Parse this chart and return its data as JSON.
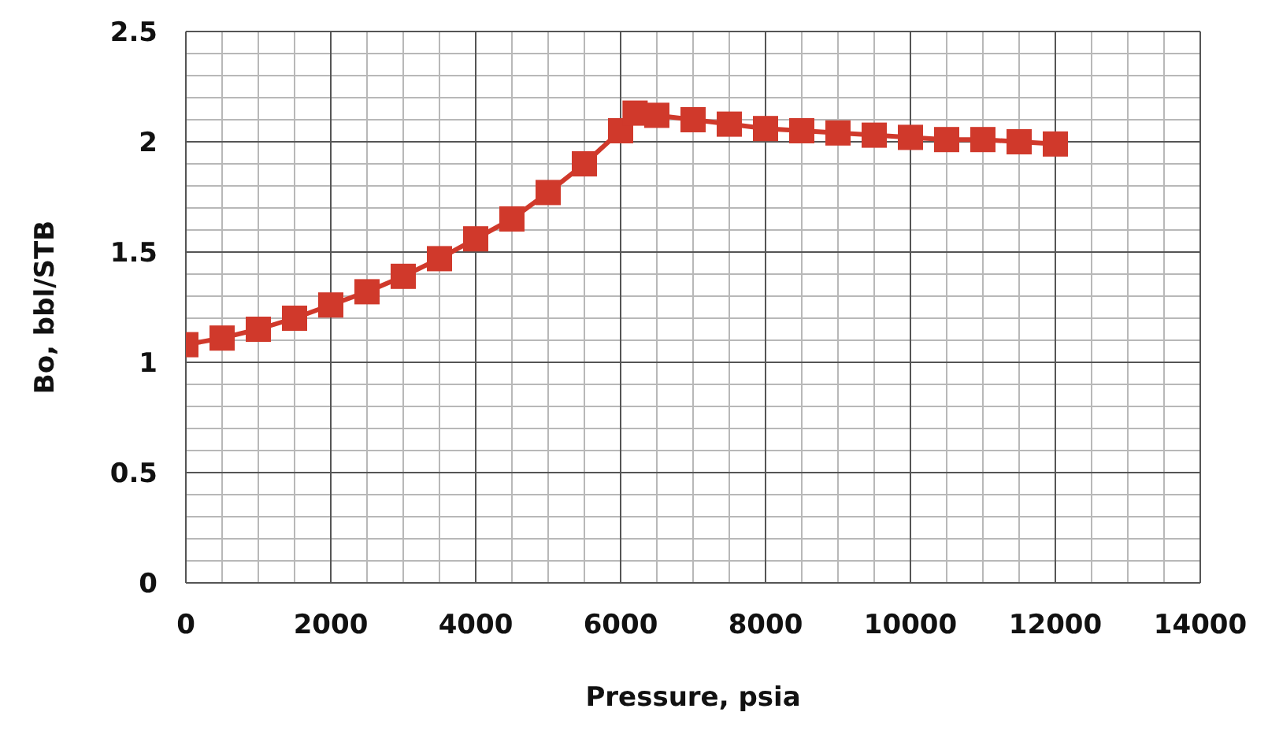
{
  "chart_data": {
    "type": "line",
    "xlabel": "Pressure, psia",
    "ylabel": "Bo, bbl/STB",
    "x": [
      0,
      500,
      1000,
      1500,
      2000,
      2500,
      3000,
      3500,
      4000,
      4500,
      5000,
      5500,
      6000,
      6200,
      6500,
      7000,
      7500,
      8000,
      8500,
      9000,
      9500,
      10000,
      10500,
      11000,
      11500,
      12000
    ],
    "series": [
      {
        "color": "#d0392b",
        "values": [
          1.08,
          1.11,
          1.15,
          1.2,
          1.26,
          1.32,
          1.39,
          1.47,
          1.56,
          1.65,
          1.77,
          1.9,
          2.05,
          2.13,
          2.12,
          2.1,
          2.08,
          2.06,
          2.05,
          2.04,
          2.03,
          2.02,
          2.01,
          2.01,
          2.0,
          1.99
        ]
      }
    ],
    "xlim": [
      0,
      14000
    ],
    "xticks": [
      0,
      2000,
      4000,
      6000,
      8000,
      10000,
      12000,
      14000
    ],
    "ylim": [
      0,
      2.5
    ],
    "yticks": [
      0,
      0.5,
      1,
      1.5,
      2,
      2.5
    ],
    "grid": true,
    "marker": "square",
    "legend": false
  }
}
